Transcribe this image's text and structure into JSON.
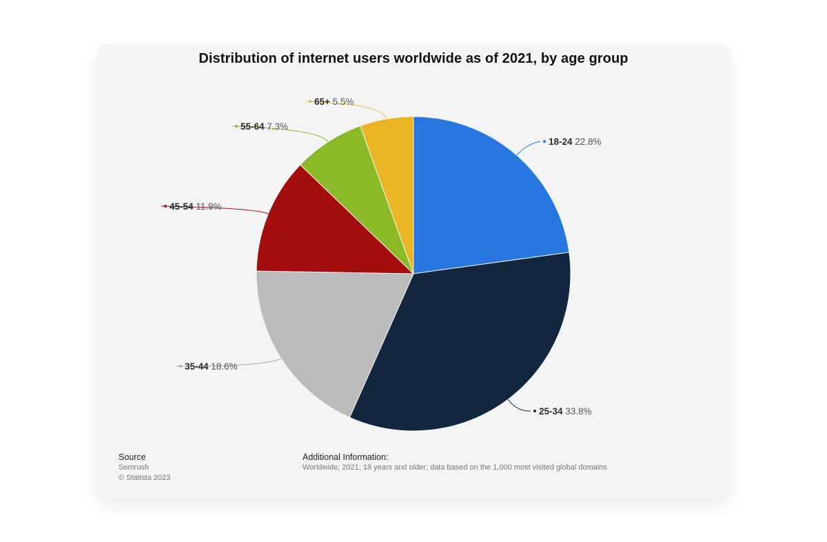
{
  "chart_data": {
    "type": "pie",
    "title": "Distribution of internet users worldwide as of 2021, by age group",
    "slices": [
      {
        "label": "18-24",
        "value": 22.8,
        "display": "22.8%",
        "color": "#2877e0"
      },
      {
        "label": "25-34",
        "value": 33.8,
        "display": "33.8%",
        "color": "#13263f"
      },
      {
        "label": "35-44",
        "value": 18.6,
        "display": "18.6%",
        "color": "#bbbbbb"
      },
      {
        "label": "45-54",
        "value": 11.9,
        "display": "11.9%",
        "color": "#a30d0d"
      },
      {
        "label": "55-64",
        "value": 7.3,
        "display": "7.3%",
        "color": "#8aba25"
      },
      {
        "label": "65+",
        "value": 5.5,
        "display": "5.5%",
        "color": "#ecb526"
      }
    ]
  },
  "footer": {
    "source_heading": "Source",
    "source_name": "Semrush",
    "copyright": "© Statista 2023",
    "info_heading": "Additional Information:",
    "info_text": "Worldwide; 2021; 18 years and older; data based on the 1,000 most visited global domains"
  }
}
